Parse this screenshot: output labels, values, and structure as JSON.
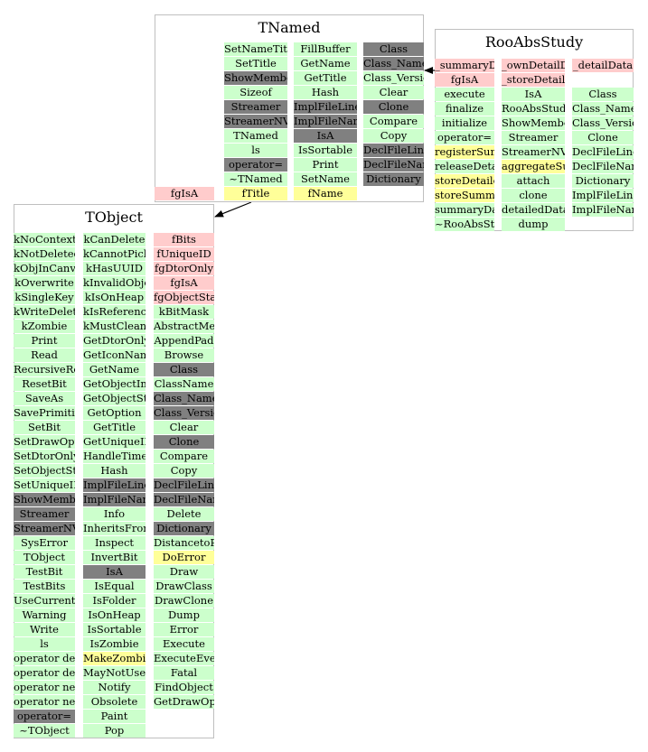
{
  "palette": {
    "public": "#ccffcc",
    "protected": "#ffff99",
    "private": "#ffcccc",
    "inherited": "#808080",
    "border": "#bfbfbf",
    "edge": "#000000"
  },
  "classes": {
    "tnamed": {
      "title": "TNamed",
      "columns": [
        [
          {
            "t": "SetNameTitle",
            "k": "public"
          },
          {
            "t": "SetTitle",
            "k": "public"
          },
          {
            "t": "ShowMembers",
            "k": "inherited"
          },
          {
            "t": "Sizeof",
            "k": "public"
          },
          {
            "t": "Streamer",
            "k": "inherited"
          },
          {
            "t": "StreamerNVirtual",
            "k": "inherited"
          },
          {
            "t": "TNamed",
            "k": "public"
          },
          {
            "t": "ls",
            "k": "public"
          },
          {
            "t": "operator=",
            "k": "inherited"
          },
          {
            "t": "~TNamed",
            "k": "public"
          },
          {
            "t": "fTitle",
            "k": "protected"
          }
        ],
        [
          {
            "t": "FillBuffer",
            "k": "public"
          },
          {
            "t": "GetName",
            "k": "public"
          },
          {
            "t": "GetTitle",
            "k": "public"
          },
          {
            "t": "Hash",
            "k": "public"
          },
          {
            "t": "ImplFileLine",
            "k": "inherited"
          },
          {
            "t": "ImplFileName",
            "k": "inherited"
          },
          {
            "t": "IsA",
            "k": "inherited"
          },
          {
            "t": "IsSortable",
            "k": "public"
          },
          {
            "t": "Print",
            "k": "public"
          },
          {
            "t": "SetName",
            "k": "public"
          },
          {
            "t": "fName",
            "k": "protected"
          }
        ],
        [
          {
            "t": "Class",
            "k": "inherited"
          },
          {
            "t": "Class_Name",
            "k": "inherited"
          },
          {
            "t": "Class_Version",
            "k": "public"
          },
          {
            "t": "Clear",
            "k": "public"
          },
          {
            "t": "Clone",
            "k": "inherited"
          },
          {
            "t": "Compare",
            "k": "public"
          },
          {
            "t": "Copy",
            "k": "public"
          },
          {
            "t": "DeclFileLine",
            "k": "inherited"
          },
          {
            "t": "DeclFileName",
            "k": "inherited"
          },
          {
            "t": "Dictionary",
            "k": "inherited"
          }
        ]
      ],
      "extra": {
        "t": "fgIsA",
        "k": "private"
      }
    },
    "rooabsstudy": {
      "title": "RooAbsStudy",
      "columns": [
        [
          {
            "t": "_summaryData",
            "k": "private"
          },
          {
            "t": "fgIsA",
            "k": "private"
          },
          {
            "t": "execute",
            "k": "public"
          },
          {
            "t": "finalize",
            "k": "public"
          },
          {
            "t": "initialize",
            "k": "public"
          },
          {
            "t": "operator=",
            "k": "public"
          },
          {
            "t": "registerSummaryOutput",
            "k": "protected"
          },
          {
            "t": "releaseDetailData",
            "k": "public"
          },
          {
            "t": "storeDetailedOutput",
            "k": "protected"
          },
          {
            "t": "storeSummaryOutput",
            "k": "protected"
          },
          {
            "t": "summaryData",
            "k": "public"
          },
          {
            "t": "~RooAbsStudy",
            "k": "public"
          }
        ],
        [
          {
            "t": "_ownDetailData",
            "k": "private"
          },
          {
            "t": "_storeDetails",
            "k": "private"
          },
          {
            "t": "IsA",
            "k": "public"
          },
          {
            "t": "RooAbsStudy",
            "k": "public"
          },
          {
            "t": "ShowMembers",
            "k": "public"
          },
          {
            "t": "Streamer",
            "k": "public"
          },
          {
            "t": "StreamerNVirtual",
            "k": "public"
          },
          {
            "t": "aggregateSummaryOutput",
            "k": "protected"
          },
          {
            "t": "attach",
            "k": "public"
          },
          {
            "t": "clone",
            "k": "public"
          },
          {
            "t": "detailedData",
            "k": "public"
          },
          {
            "t": "dump",
            "k": "public"
          }
        ],
        [
          {
            "t": "_detailData",
            "k": "private"
          },
          {
            "t": "",
            "k": "none"
          },
          {
            "t": "Class",
            "k": "public"
          },
          {
            "t": "Class_Name",
            "k": "public"
          },
          {
            "t": "Class_Version",
            "k": "public"
          },
          {
            "t": "Clone",
            "k": "public"
          },
          {
            "t": "DeclFileLine",
            "k": "public"
          },
          {
            "t": "DeclFileName",
            "k": "public"
          },
          {
            "t": "Dictionary",
            "k": "public"
          },
          {
            "t": "ImplFileLine",
            "k": "public"
          },
          {
            "t": "ImplFileName",
            "k": "public"
          }
        ]
      ]
    },
    "tobject": {
      "title": "TObject",
      "columns": [
        [
          {
            "t": "kNoContextMenu",
            "k": "public"
          },
          {
            "t": "kNotDeleted",
            "k": "public"
          },
          {
            "t": "kObjInCanvas",
            "k": "public"
          },
          {
            "t": "kOverwrite",
            "k": "public"
          },
          {
            "t": "kSingleKey",
            "k": "public"
          },
          {
            "t": "kWriteDelete",
            "k": "public"
          },
          {
            "t": "kZombie",
            "k": "public"
          },
          {
            "t": "Print",
            "k": "public"
          },
          {
            "t": "Read",
            "k": "public"
          },
          {
            "t": "RecursiveRemove",
            "k": "public"
          },
          {
            "t": "ResetBit",
            "k": "public"
          },
          {
            "t": "SaveAs",
            "k": "public"
          },
          {
            "t": "SavePrimitive",
            "k": "public"
          },
          {
            "t": "SetBit",
            "k": "public"
          },
          {
            "t": "SetDrawOption",
            "k": "public"
          },
          {
            "t": "SetDtorOnly",
            "k": "public"
          },
          {
            "t": "SetObjectStat",
            "k": "public"
          },
          {
            "t": "SetUniqueID",
            "k": "public"
          },
          {
            "t": "ShowMembers",
            "k": "inherited"
          },
          {
            "t": "Streamer",
            "k": "inherited"
          },
          {
            "t": "StreamerNVirtual",
            "k": "inherited"
          },
          {
            "t": "SysError",
            "k": "public"
          },
          {
            "t": "TObject",
            "k": "public"
          },
          {
            "t": "TestBit",
            "k": "public"
          },
          {
            "t": "TestBits",
            "k": "public"
          },
          {
            "t": "UseCurrentStyle",
            "k": "public"
          },
          {
            "t": "Warning",
            "k": "public"
          },
          {
            "t": "Write",
            "k": "public"
          },
          {
            "t": "ls",
            "k": "public"
          },
          {
            "t": "operator delete",
            "k": "public"
          },
          {
            "t": "operator delete[]",
            "k": "public"
          },
          {
            "t": "operator new",
            "k": "public"
          },
          {
            "t": "operator new[]",
            "k": "public"
          },
          {
            "t": "operator=",
            "k": "inherited"
          },
          {
            "t": "~TObject",
            "k": "public"
          }
        ],
        [
          {
            "t": "kCanDelete",
            "k": "public"
          },
          {
            "t": "kCannotPick",
            "k": "public"
          },
          {
            "t": "kHasUUID",
            "k": "public"
          },
          {
            "t": "kInvalidObject",
            "k": "public"
          },
          {
            "t": "kIsOnHeap",
            "k": "public"
          },
          {
            "t": "kIsReferenced",
            "k": "public"
          },
          {
            "t": "kMustCleanup",
            "k": "public"
          },
          {
            "t": "GetDtorOnly",
            "k": "public"
          },
          {
            "t": "GetIconName",
            "k": "public"
          },
          {
            "t": "GetName",
            "k": "public"
          },
          {
            "t": "GetObjectInfo",
            "k": "public"
          },
          {
            "t": "GetObjectStat",
            "k": "public"
          },
          {
            "t": "GetOption",
            "k": "public"
          },
          {
            "t": "GetTitle",
            "k": "public"
          },
          {
            "t": "GetUniqueID",
            "k": "public"
          },
          {
            "t": "HandleTimer",
            "k": "public"
          },
          {
            "t": "Hash",
            "k": "public"
          },
          {
            "t": "ImplFileLine",
            "k": "inherited"
          },
          {
            "t": "ImplFileName",
            "k": "inherited"
          },
          {
            "t": "Info",
            "k": "public"
          },
          {
            "t": "InheritsFrom",
            "k": "public"
          },
          {
            "t": "Inspect",
            "k": "public"
          },
          {
            "t": "InvertBit",
            "k": "public"
          },
          {
            "t": "IsA",
            "k": "inherited"
          },
          {
            "t": "IsEqual",
            "k": "public"
          },
          {
            "t": "IsFolder",
            "k": "public"
          },
          {
            "t": "IsOnHeap",
            "k": "public"
          },
          {
            "t": "IsSortable",
            "k": "public"
          },
          {
            "t": "IsZombie",
            "k": "public"
          },
          {
            "t": "MakeZombie",
            "k": "protected"
          },
          {
            "t": "MayNotUse",
            "k": "public"
          },
          {
            "t": "Notify",
            "k": "public"
          },
          {
            "t": "Obsolete",
            "k": "public"
          },
          {
            "t": "Paint",
            "k": "public"
          },
          {
            "t": "Pop",
            "k": "public"
          }
        ],
        [
          {
            "t": "fBits",
            "k": "private"
          },
          {
            "t": "fUniqueID",
            "k": "private"
          },
          {
            "t": "fgDtorOnly",
            "k": "private"
          },
          {
            "t": "fgIsA",
            "k": "private"
          },
          {
            "t": "fgObjectStat",
            "k": "private"
          },
          {
            "t": "kBitMask",
            "k": "public"
          },
          {
            "t": "AbstractMethod",
            "k": "public"
          },
          {
            "t": "AppendPad",
            "k": "public"
          },
          {
            "t": "Browse",
            "k": "public"
          },
          {
            "t": "Class",
            "k": "inherited"
          },
          {
            "t": "ClassName",
            "k": "public"
          },
          {
            "t": "Class_Name",
            "k": "inherited"
          },
          {
            "t": "Class_Version",
            "k": "inherited"
          },
          {
            "t": "Clear",
            "k": "public"
          },
          {
            "t": "Clone",
            "k": "inherited"
          },
          {
            "t": "Compare",
            "k": "public"
          },
          {
            "t": "Copy",
            "k": "public"
          },
          {
            "t": "DeclFileLine",
            "k": "inherited"
          },
          {
            "t": "DeclFileName",
            "k": "inherited"
          },
          {
            "t": "Delete",
            "k": "public"
          },
          {
            "t": "Dictionary",
            "k": "inherited"
          },
          {
            "t": "DistancetoPrimitive",
            "k": "public"
          },
          {
            "t": "DoError",
            "k": "protected"
          },
          {
            "t": "Draw",
            "k": "public"
          },
          {
            "t": "DrawClass",
            "k": "public"
          },
          {
            "t": "DrawClone",
            "k": "public"
          },
          {
            "t": "Dump",
            "k": "public"
          },
          {
            "t": "Error",
            "k": "public"
          },
          {
            "t": "Execute",
            "k": "public"
          },
          {
            "t": "ExecuteEvent",
            "k": "public"
          },
          {
            "t": "Fatal",
            "k": "public"
          },
          {
            "t": "FindObject",
            "k": "public"
          },
          {
            "t": "GetDrawOption",
            "k": "public"
          }
        ]
      ]
    }
  }
}
